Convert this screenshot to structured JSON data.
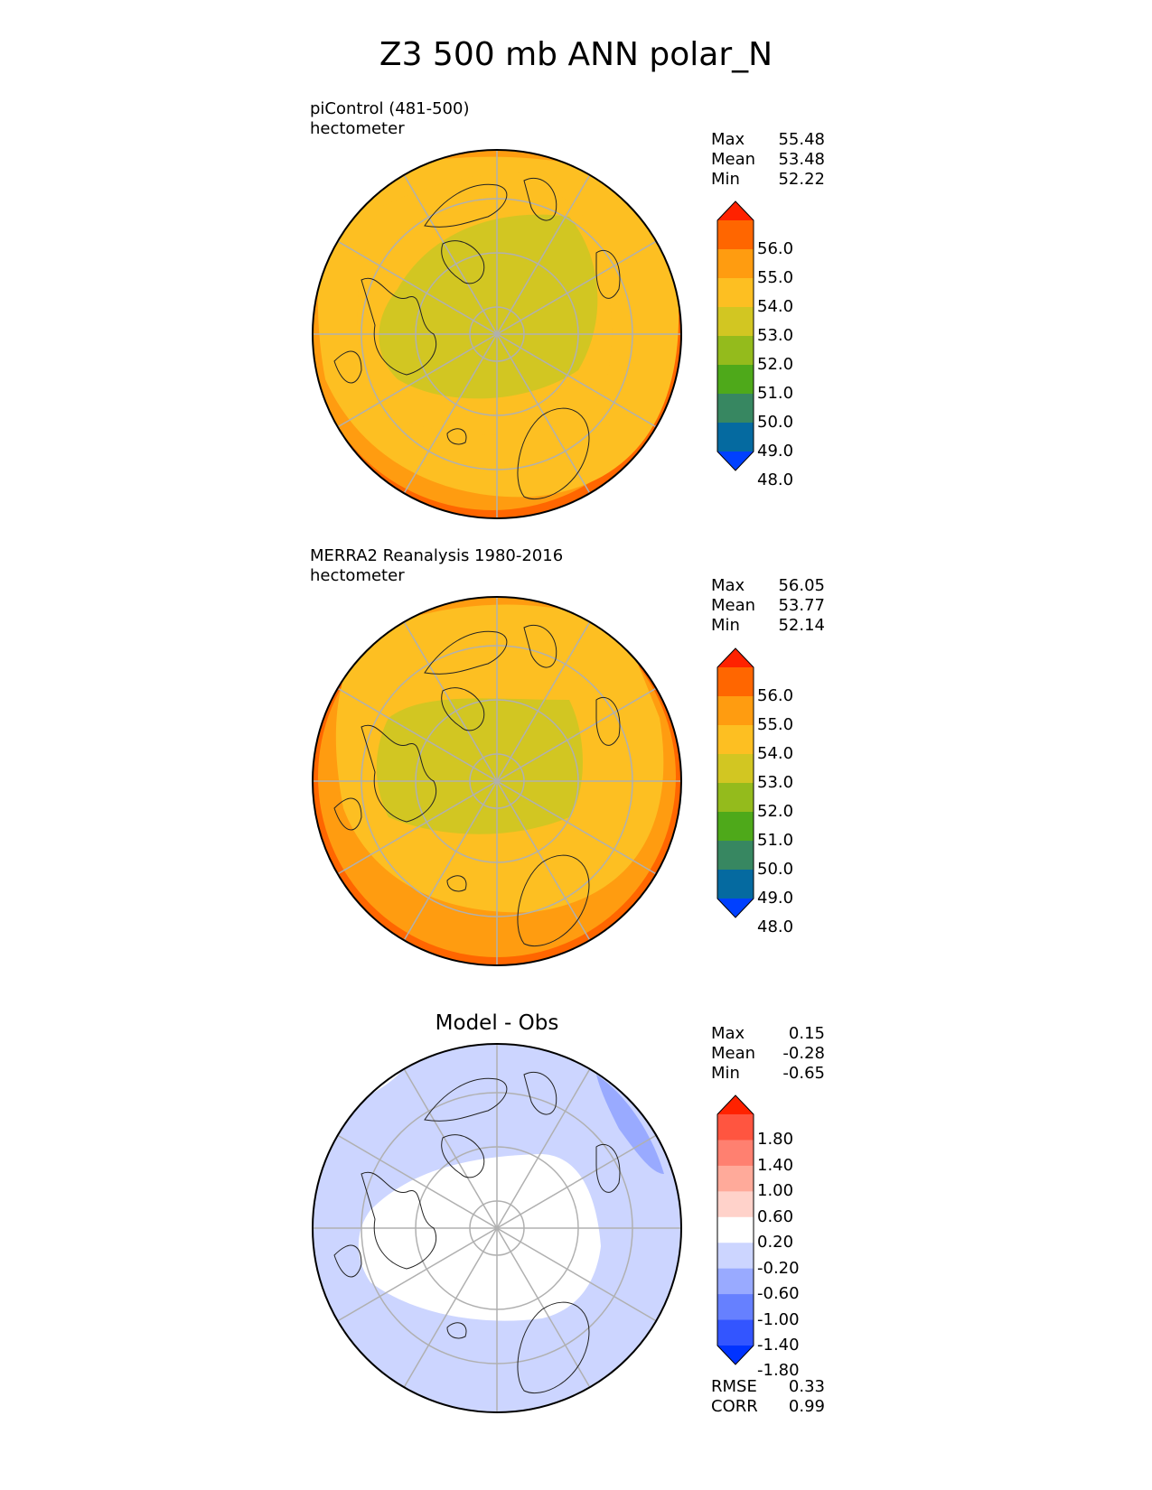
{
  "title": "Z3 500 mb ANN polar_N",
  "panels": [
    {
      "label_line1": "piControl (481-500)",
      "label_line2": "hectometer",
      "stats": [
        {
          "name": "Max",
          "value": "55.48"
        },
        {
          "name": "Mean",
          "value": "53.48"
        },
        {
          "name": "Min",
          "value": "52.22"
        }
      ],
      "colorbar_ticks": [
        "56.0",
        "55.0",
        "54.0",
        "53.0",
        "52.0",
        "51.0",
        "50.0",
        "49.0",
        "48.0"
      ],
      "colorbar_colors": [
        "#ff2200",
        "#ff6600",
        "#ff9c10",
        "#fdbf22",
        "#d2c622",
        "#94bb1c",
        "#4ea91a",
        "#378761",
        "#056aa0",
        "#0040ff"
      ]
    },
    {
      "label_line1": "MERRA2 Reanalysis 1980-2016",
      "label_line2": "hectometer",
      "stats": [
        {
          "name": "Max",
          "value": "56.05"
        },
        {
          "name": "Mean",
          "value": "53.77"
        },
        {
          "name": "Min",
          "value": "52.14"
        }
      ],
      "colorbar_ticks": [
        "56.0",
        "55.0",
        "54.0",
        "53.0",
        "52.0",
        "51.0",
        "50.0",
        "49.0",
        "48.0"
      ],
      "colorbar_colors": [
        "#ff2200",
        "#ff6600",
        "#ff9c10",
        "#fdbf22",
        "#d2c622",
        "#94bb1c",
        "#4ea91a",
        "#378761",
        "#056aa0",
        "#0040ff"
      ]
    },
    {
      "title": "Model - Obs",
      "stats": [
        {
          "name": "Max",
          "value": "0.15"
        },
        {
          "name": "Mean",
          "value": "-0.28"
        },
        {
          "name": "Min",
          "value": "-0.65"
        }
      ],
      "colorbar_ticks": [
        "1.80",
        "1.40",
        "1.00",
        "0.60",
        "0.20",
        "-0.20",
        "-0.60",
        "-1.00",
        "-1.40",
        "-1.80"
      ],
      "colorbar_colors": [
        "#ff2200",
        "#ff5540",
        "#ff8070",
        "#ffaa9a",
        "#ffd2ca",
        "#ffffff",
        "#ccd5ff",
        "#99aaff",
        "#6680ff",
        "#3355ff",
        "#0033ff"
      ],
      "metrics": [
        {
          "name": "RMSE",
          "value": "0.33"
        },
        {
          "name": "CORR",
          "value": "0.99"
        }
      ]
    }
  ]
}
